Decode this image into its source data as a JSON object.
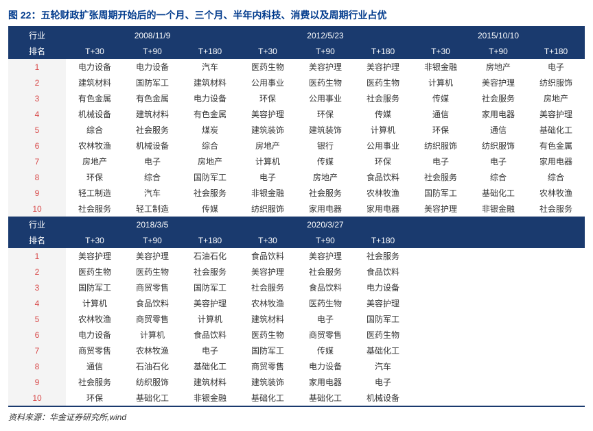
{
  "title_prefix": "图 22：",
  "title_text": "五轮财政扩张周期开始后的一个月、三个月、半年内科技、消费以及周期行业占优",
  "colors": {
    "header_bg": "#1a3a6e",
    "header_fg": "#ffffff",
    "rank_fg": "#d84b4b",
    "rank_bg": "#f4f4f4",
    "cell_fg": "#333333",
    "border": "#1a3a6e",
    "title_fg": "#003a8c"
  },
  "rank_header_top": "行业",
  "rank_header_bottom": "排名",
  "sub_cols": [
    "T+30",
    "T+90",
    "T+180"
  ],
  "ranks": [
    "1",
    "2",
    "3",
    "4",
    "5",
    "6",
    "7",
    "8",
    "9",
    "10"
  ],
  "blocks": [
    {
      "dates": [
        "2008/11/9",
        "2012/5/23",
        "2015/10/10"
      ],
      "cols": [
        [
          "电力设备",
          "建筑材料",
          "有色金属",
          "机械设备",
          "综合",
          "农林牧渔",
          "房地产",
          "环保",
          "轻工制造",
          "社会服务"
        ],
        [
          "电力设备",
          "国防军工",
          "有色金属",
          "建筑材料",
          "社会服务",
          "机械设备",
          "电子",
          "综合",
          "汽车",
          "轻工制造"
        ],
        [
          "汽车",
          "建筑材料",
          "电力设备",
          "有色金属",
          "煤炭",
          "综合",
          "房地产",
          "国防军工",
          "社会服务",
          "传媒"
        ],
        [
          "医药生物",
          "公用事业",
          "环保",
          "美容护理",
          "建筑装饰",
          "房地产",
          "计算机",
          "电子",
          "非银金融",
          "纺织服饰"
        ],
        [
          "美容护理",
          "医药生物",
          "公用事业",
          "环保",
          "建筑装饰",
          "银行",
          "传媒",
          "房地产",
          "社会服务",
          "家用电器"
        ],
        [
          "美容护理",
          "医药生物",
          "社会服务",
          "传媒",
          "计算机",
          "公用事业",
          "环保",
          "食品饮料",
          "农林牧渔",
          "家用电器"
        ],
        [
          "非银金融",
          "计算机",
          "传媒",
          "通信",
          "环保",
          "纺织服饰",
          "电子",
          "社会服务",
          "国防军工",
          "美容护理"
        ],
        [
          "房地产",
          "美容护理",
          "社会服务",
          "家用电器",
          "通信",
          "纺织服饰",
          "电子",
          "综合",
          "基础化工",
          "非银金融"
        ],
        [
          "电子",
          "纺织服饰",
          "房地产",
          "美容护理",
          "基础化工",
          "有色金属",
          "家用电器",
          "综合",
          "农林牧渔",
          "社会服务"
        ]
      ]
    },
    {
      "dates": [
        "2018/3/5",
        "2020/3/27",
        ""
      ],
      "cols": [
        [
          "美容护理",
          "医药生物",
          "国防军工",
          "计算机",
          "农林牧渔",
          "电力设备",
          "商贸零售",
          "通信",
          "社会服务",
          "环保"
        ],
        [
          "美容护理",
          "医药生物",
          "商贸零售",
          "食品饮料",
          "商贸零售",
          "计算机",
          "农林牧渔",
          "石油石化",
          "纺织服饰",
          "基础化工"
        ],
        [
          "石油石化",
          "社会服务",
          "国防军工",
          "美容护理",
          "计算机",
          "食品饮料",
          "电子",
          "基础化工",
          "建筑材料",
          "非银金融"
        ],
        [
          "食品饮料",
          "美容护理",
          "社会服务",
          "农林牧渔",
          "建筑材料",
          "医药生物",
          "国防军工",
          "商贸零售",
          "建筑装饰",
          "基础化工"
        ],
        [
          "美容护理",
          "社会服务",
          "食品饮料",
          "医药生物",
          "电子",
          "商贸零售",
          "传媒",
          "电力设备",
          "家用电器",
          "基础化工"
        ],
        [
          "社会服务",
          "食品饮料",
          "电力设备",
          "美容护理",
          "国防军工",
          "医药生物",
          "基础化工",
          "汽车",
          "电子",
          "机械设备"
        ],
        [
          "",
          "",
          "",
          "",
          "",
          "",
          "",
          "",
          "",
          ""
        ],
        [
          "",
          "",
          "",
          "",
          "",
          "",
          "",
          "",
          "",
          ""
        ],
        [
          "",
          "",
          "",
          "",
          "",
          "",
          "",
          "",
          "",
          ""
        ]
      ]
    }
  ],
  "source_label": "资料来源：",
  "source_text": "华金证券研究所,wind"
}
